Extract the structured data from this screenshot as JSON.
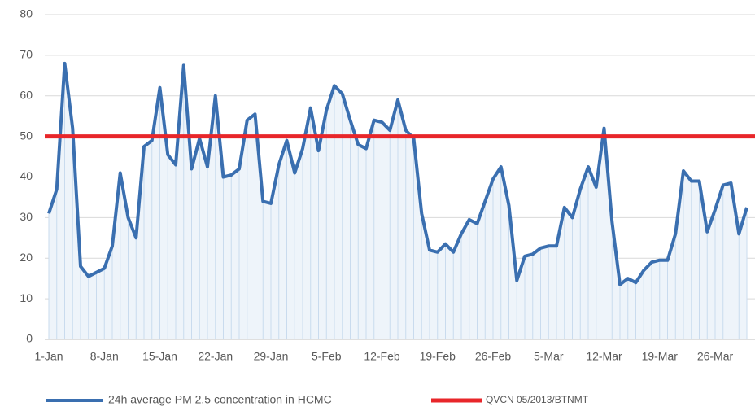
{
  "chart_data": {
    "type": "line",
    "categories": [
      "1-Jan",
      null,
      null,
      null,
      null,
      null,
      null,
      "8-Jan",
      null,
      null,
      null,
      null,
      null,
      null,
      "15-Jan",
      null,
      null,
      null,
      null,
      null,
      null,
      "22-Jan",
      null,
      null,
      null,
      null,
      null,
      null,
      "29-Jan",
      null,
      null,
      null,
      null,
      null,
      null,
      "5-Feb",
      null,
      null,
      null,
      null,
      null,
      null,
      "12-Feb",
      null,
      null,
      null,
      null,
      null,
      null,
      "19-Feb",
      null,
      null,
      null,
      null,
      null,
      null,
      "26-Feb",
      null,
      null,
      null,
      null,
      null,
      null,
      "5-Mar",
      null,
      null,
      null,
      null,
      null,
      null,
      "12-Mar",
      null,
      null,
      null,
      null,
      null,
      null,
      "19-Mar",
      null,
      null,
      null,
      null,
      null,
      null,
      "26-Mar",
      null,
      null,
      null,
      null
    ],
    "series": [
      {
        "name": "24h average PM 2.5 concentration in HCMC",
        "color": "#3a6fb0",
        "values": [
          31,
          37,
          68,
          52,
          18,
          15.5,
          16.5,
          17.5,
          23,
          41,
          30,
          25,
          47.5,
          49,
          62,
          45.5,
          43,
          67.5,
          42,
          49.5,
          42.5,
          60,
          40,
          40.5,
          42,
          54,
          55.5,
          34,
          33.5,
          43,
          49,
          41,
          47,
          57,
          46.5,
          56.5,
          62.5,
          60.5,
          54,
          48,
          47,
          54,
          53.5,
          51.5,
          59,
          51.5,
          49.5,
          31,
          22,
          21.5,
          23.5,
          21.5,
          26,
          29.5,
          28.5,
          34,
          39.5,
          42.5,
          33,
          14.5,
          20.5,
          21,
          22.5,
          23,
          23,
          32.5,
          30,
          37,
          42.5,
          37.5,
          52,
          29,
          13.5,
          15,
          14,
          17,
          19,
          19.5,
          19.5,
          26,
          41.5,
          39,
          39,
          26.5,
          32,
          38,
          38.5,
          26,
          32.5
        ]
      }
    ],
    "reference_line": {
      "name": "QVCN 05/2013/BTNMT",
      "value": 50,
      "color": "#e8262a"
    },
    "ylim": [
      0,
      80
    ],
    "yticks": [
      0,
      10,
      20,
      30,
      40,
      50,
      60,
      70,
      80
    ],
    "grid": true
  }
}
